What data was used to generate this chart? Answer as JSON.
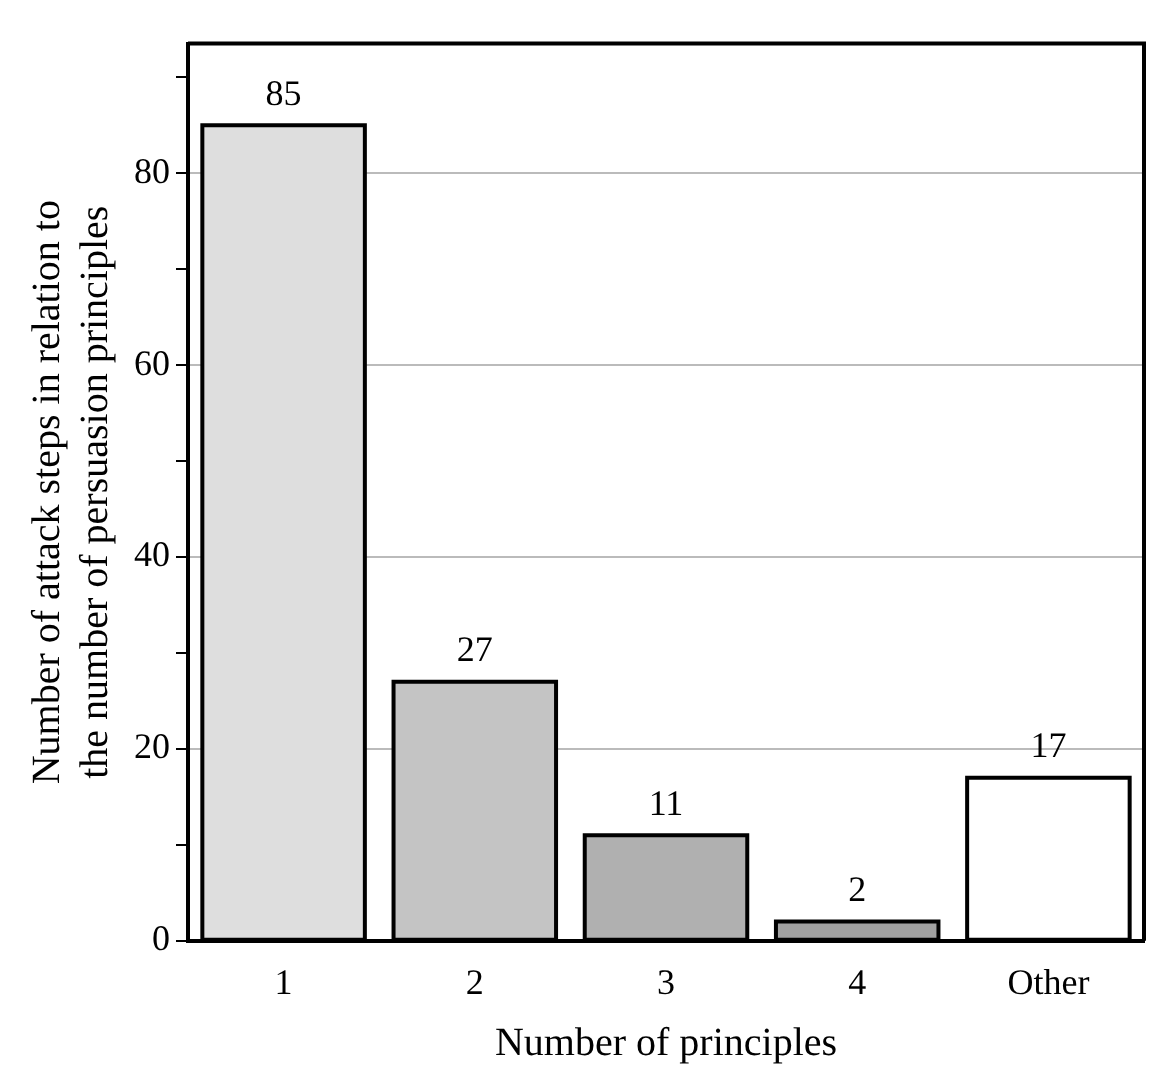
{
  "chart_data": {
    "type": "bar",
    "xlabel": "Number of principles",
    "ylabel": "Number of attack steps in relation to\nthe number of persuasion principles",
    "categories": [
      "1",
      "2",
      "3",
      "4",
      "Other"
    ],
    "values": [
      85,
      27,
      11,
      2,
      17
    ],
    "colors": [
      "#dedede",
      "#c4c4c4",
      "#b0b0b0",
      "#a0a0a0",
      "#ffffff"
    ],
    "data_labels": true,
    "ylim": [
      0,
      93.5
    ],
    "yticks": [
      0,
      {
        "value": 10,
        "label": null
      },
      20,
      {
        "value": 30,
        "label": null
      },
      40,
      {
        "value": 50,
        "label": null
      },
      60,
      {
        "value": 70,
        "label": null
      },
      80,
      {
        "value": 90,
        "label": null
      }
    ],
    "grid": "y"
  }
}
